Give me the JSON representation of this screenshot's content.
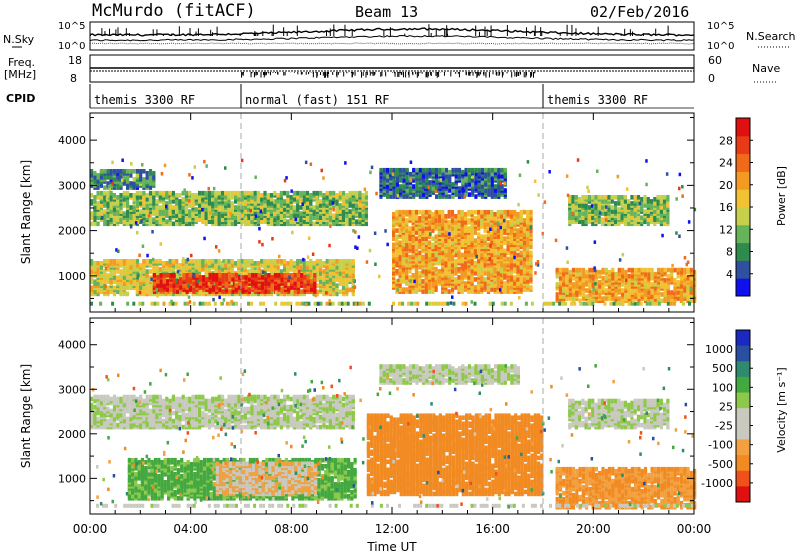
{
  "header": {
    "station": "McMurdo (fitACF)",
    "beam": "Beam 13",
    "date": "02/Feb/2016"
  },
  "summary_labels": {
    "nsky": "N.Sky",
    "nsearch": "N.Search",
    "freq": "Freq.",
    "freq_unit": "[MHz]",
    "nave": "Nave",
    "cpid": "CPID"
  },
  "summary_ticks": {
    "noise_left_top": "10^5",
    "noise_left_bottom": "10^0",
    "noise_right_top": "10^5",
    "noise_right_bottom": "10^0",
    "freq_top": "18",
    "freq_bottom": "8",
    "nave_top": "60",
    "nave_bottom": "0"
  },
  "cpid_segments": [
    {
      "label": "themis 3300 RF",
      "start_h": 0,
      "end_h": 6
    },
    {
      "label": "normal (fast) 151 RF",
      "start_h": 6,
      "end_h": 18
    },
    {
      "label": "themis 3300 RF",
      "start_h": 18,
      "end_h": 24
    }
  ],
  "colors": {
    "power_scale": [
      "#1010ee",
      "#2f4fa0",
      "#2f8a4e",
      "#66b35a",
      "#c7d04a",
      "#f2c232",
      "#f29a22",
      "#f06a1a",
      "#e83a16",
      "#e01010"
    ],
    "velocity_scale": [
      "#e01010",
      "#f0501a",
      "#f28a22",
      "#f2a040",
      "#c9c9c0",
      "#c9c9c0",
      "#8dc84a",
      "#44a840",
      "#2f8a6e",
      "#2a4fa0",
      "#1a2ac0"
    ]
  },
  "chart_data": [
    {
      "type": "heatmap",
      "name": "Power",
      "xlabel": "",
      "ylabel": "Slant Range [km]",
      "x_range_h": [
        0,
        24
      ],
      "ylim": [
        200,
        4600
      ],
      "x_ticks": [
        "00:00",
        "04:00",
        "08:00",
        "12:00",
        "16:00",
        "20:00",
        "00:00"
      ],
      "y_ticks": [
        1000,
        2000,
        3000,
        4000
      ],
      "colorbar": {
        "label": "Power [dB]",
        "ticks": [
          4,
          8,
          12,
          16,
          20,
          24,
          28
        ],
        "range": [
          0,
          32
        ]
      },
      "echo_regions": [
        {
          "t_start_h": 0.0,
          "t_end_h": 11.0,
          "range_km": [
            2100,
            2800
          ],
          "value_db": 12
        },
        {
          "t_start_h": 0.0,
          "t_end_h": 2.5,
          "range_km": [
            2900,
            3300
          ],
          "value_db": 8
        },
        {
          "t_start_h": 0.0,
          "t_end_h": 10.5,
          "range_km": [
            550,
            1300
          ],
          "value_db": 16
        },
        {
          "t_start_h": 2.5,
          "t_end_h": 9.0,
          "range_km": [
            600,
            1000
          ],
          "value_db": 28
        },
        {
          "t_start_h": 11.5,
          "t_end_h": 16.5,
          "range_km": [
            2700,
            3300
          ],
          "value_db": 6
        },
        {
          "t_start_h": 12.0,
          "t_end_h": 17.5,
          "range_km": [
            600,
            2400
          ],
          "value_db": 20
        },
        {
          "t_start_h": 18.5,
          "t_end_h": 24.0,
          "range_km": [
            400,
            1100
          ],
          "value_db": 20
        },
        {
          "t_start_h": 19.0,
          "t_end_h": 23.0,
          "range_km": [
            2100,
            2700
          ],
          "value_db": 12
        }
      ]
    },
    {
      "type": "heatmap",
      "name": "Velocity",
      "xlabel": "Time UT",
      "ylabel": "Slant Range [km]",
      "x_range_h": [
        0,
        24
      ],
      "ylim": [
        200,
        4600
      ],
      "x_ticks": [
        "00:00",
        "04:00",
        "08:00",
        "12:00",
        "16:00",
        "20:00",
        "00:00"
      ],
      "y_ticks": [
        1000,
        2000,
        3000,
        4000
      ],
      "colorbar": {
        "label": "Velocity [m s⁻¹]",
        "ticks": [
          "1000",
          "500",
          "100",
          "25",
          "-25",
          "-100",
          "-500",
          "-1000"
        ]
      },
      "echo_regions": [
        {
          "t_start_h": 0.0,
          "t_end_h": 10.5,
          "range_km": [
            2100,
            2800
          ],
          "value_ms": 0
        },
        {
          "t_start_h": 1.5,
          "t_end_h": 10.5,
          "range_km": [
            500,
            1400
          ],
          "value_ms": 150
        },
        {
          "t_start_h": 5.0,
          "t_end_h": 9.0,
          "range_km": [
            600,
            1300
          ],
          "value_ms": -100
        },
        {
          "t_start_h": 11.0,
          "t_end_h": 18.0,
          "range_km": [
            600,
            2400
          ],
          "value_ms": -400
        },
        {
          "t_start_h": 11.5,
          "t_end_h": 17.0,
          "range_km": [
            3100,
            3500
          ],
          "value_ms": 0
        },
        {
          "t_start_h": 18.5,
          "t_end_h": 24.0,
          "range_km": [
            300,
            1200
          ],
          "value_ms": -300
        },
        {
          "t_start_h": 19.0,
          "t_end_h": 23.0,
          "range_km": [
            2100,
            2700
          ],
          "value_ms": 0
        }
      ]
    }
  ]
}
